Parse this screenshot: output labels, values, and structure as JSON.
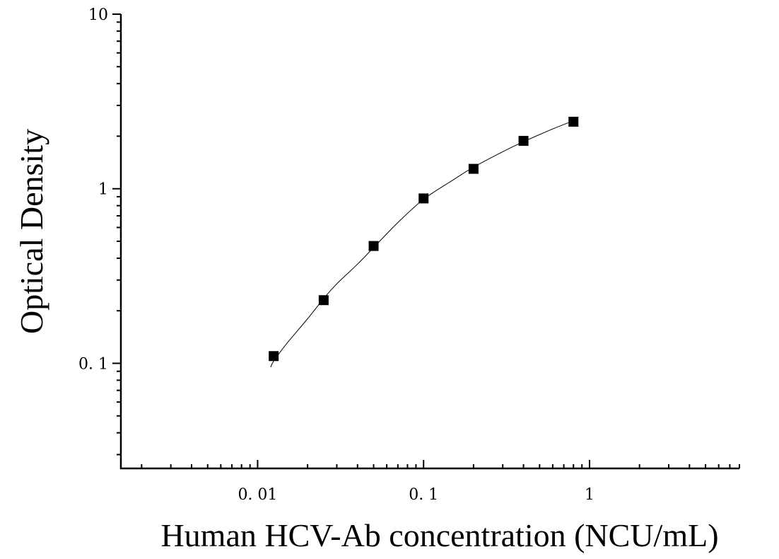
{
  "chart_data": {
    "type": "scatter",
    "title": "",
    "xlabel": "Human HCV-Ab concentration (NCU/mL)",
    "ylabel": "Optical Density",
    "x_scale": "log",
    "y_scale": "log",
    "xlim": [
      0.0015,
      8
    ],
    "ylim": [
      0.025,
      10
    ],
    "x_ticks": [
      {
        "value": 0.01,
        "label": "0. 01"
      },
      {
        "value": 0.1,
        "label": "0. 1"
      },
      {
        "value": 1,
        "label": "1"
      }
    ],
    "y_ticks": [
      {
        "value": 0.1,
        "label": "0. 1"
      },
      {
        "value": 1,
        "label": "1"
      },
      {
        "value": 10,
        "label": "10"
      }
    ],
    "grid": false,
    "legend": "none",
    "series": [
      {
        "marker": "square",
        "color": "#000000",
        "points": [
          {
            "x": 0.0125,
            "y": 0.11
          },
          {
            "x": 0.025,
            "y": 0.23
          },
          {
            "x": 0.05,
            "y": 0.47
          },
          {
            "x": 0.1,
            "y": 0.88
          },
          {
            "x": 0.2,
            "y": 1.3
          },
          {
            "x": 0.4,
            "y": 1.88
          },
          {
            "x": 0.8,
            "y": 2.42
          }
        ]
      }
    ],
    "fit_curve": {
      "color": "#000000",
      "points": [
        {
          "x": 0.012,
          "y": 0.095
        },
        {
          "x": 0.0125,
          "y": 0.103
        },
        {
          "x": 0.015,
          "y": 0.13
        },
        {
          "x": 0.02,
          "y": 0.18
        },
        {
          "x": 0.025,
          "y": 0.235
        },
        {
          "x": 0.03,
          "y": 0.285
        },
        {
          "x": 0.04,
          "y": 0.37
        },
        {
          "x": 0.05,
          "y": 0.46
        },
        {
          "x": 0.07,
          "y": 0.64
        },
        {
          "x": 0.1,
          "y": 0.87
        },
        {
          "x": 0.15,
          "y": 1.12
        },
        {
          "x": 0.2,
          "y": 1.33
        },
        {
          "x": 0.3,
          "y": 1.63
        },
        {
          "x": 0.4,
          "y": 1.86
        },
        {
          "x": 0.6,
          "y": 2.2
        },
        {
          "x": 0.8,
          "y": 2.45
        }
      ]
    }
  }
}
